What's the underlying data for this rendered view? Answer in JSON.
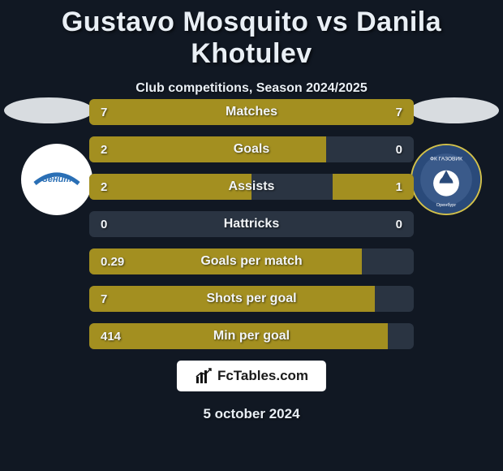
{
  "title": "Gustavo Mosquito vs Danila Khotulev",
  "subtitle": "Club competitions, Season 2024/2025",
  "date": "5 october 2024",
  "branding": {
    "text": "FcTables.com"
  },
  "colors": {
    "background": "#111823",
    "bar_track": "#2a3442",
    "left_fill": "#a38f20",
    "right_fill": "#a38f20",
    "text": "#e9eff5",
    "title_fontsize": 34,
    "subtitle_fontsize": 16,
    "bar_label_fontsize": 16,
    "bar_value_fontsize": 15
  },
  "club_left": {
    "name": "Zenit",
    "bg": "#ffffff",
    "accent": "#2a6fb5"
  },
  "club_right": {
    "name": "Orenburg",
    "bg": "#2a4a7a",
    "accent": "#ffffff"
  },
  "bars": [
    {
      "label": "Matches",
      "left_val": "7",
      "right_val": "7",
      "left_pct": 50,
      "right_pct": 50
    },
    {
      "label": "Goals",
      "left_val": "2",
      "right_val": "0",
      "left_pct": 73,
      "right_pct": 0
    },
    {
      "label": "Assists",
      "left_val": "2",
      "right_val": "1",
      "left_pct": 50,
      "right_pct": 25
    },
    {
      "label": "Hattricks",
      "left_val": "0",
      "right_val": "0",
      "left_pct": 0,
      "right_pct": 0
    },
    {
      "label": "Goals per match",
      "left_val": "0.29",
      "right_val": "",
      "left_pct": 84,
      "right_pct": 0
    },
    {
      "label": "Shots per goal",
      "left_val": "7",
      "right_val": "",
      "left_pct": 88,
      "right_pct": 0
    },
    {
      "label": "Min per goal",
      "left_val": "414",
      "right_val": "",
      "left_pct": 92,
      "right_pct": 0
    }
  ]
}
